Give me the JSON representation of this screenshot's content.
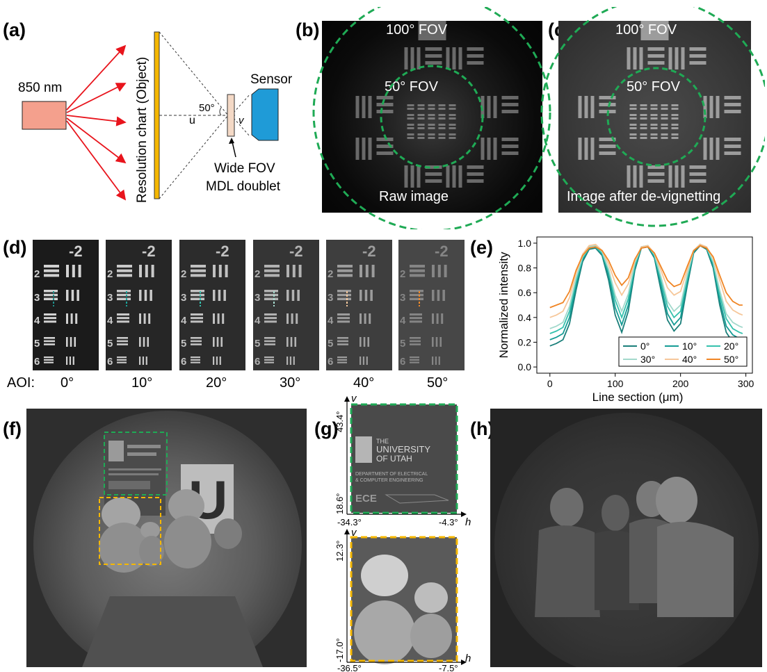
{
  "panel_labels": {
    "a": "(a)",
    "b": "(b)",
    "c": "(c)",
    "d": "(d)",
    "e": "(e)",
    "f": "(f)",
    "g": "(g)",
    "h": "(h)"
  },
  "panel_a": {
    "source_label": "850 nm",
    "object_label": "Resolution chart (Object)",
    "sensor_label": "Sensor",
    "angle_label": "50°",
    "u_label": "u",
    "v_label": "v",
    "lens_label_line1": "Wide FOV",
    "lens_label_line2": "MDL doublet",
    "colors": {
      "source": "#f4a08d",
      "object": "#f5b700",
      "sensor": "#1f9bd7",
      "rays": "#e8141c",
      "lens": "#f4d9c6"
    }
  },
  "panel_b": {
    "fov_outer": "100° FOV",
    "fov_inner": "50° FOV",
    "caption": "Raw image"
  },
  "panel_c": {
    "fov_outer": "100° FOV",
    "fov_inner": "50° FOV",
    "caption": "Image after de-vignetting"
  },
  "fov_circle_color": "#1faa55",
  "panel_d": {
    "aoi_prefix": "AOI:",
    "aoi_values": [
      "0°",
      "10°",
      "20°",
      "30°",
      "40°",
      "50°"
    ],
    "chart_group_label": "-2",
    "element_numbers": [
      "2",
      "3",
      "4",
      "5",
      "6"
    ],
    "line_colors": [
      "#1f8f8a",
      "#1aa39a",
      "#35c2b0",
      "#a8dccf",
      "#f6c89c",
      "#f08a2a"
    ]
  },
  "chart_data": {
    "type": "line",
    "xlabel": "Line section (μm)",
    "ylabel": "Normalized intensity",
    "xlim": [
      -20,
      310
    ],
    "ylim": [
      -0.05,
      1.05
    ],
    "xticks": [
      0,
      100,
      200,
      300
    ],
    "yticks": [
      0.0,
      0.2,
      0.4,
      0.6,
      0.8,
      1.0
    ],
    "legend_position": "bottom-right",
    "legend_columns": 3,
    "x": [
      0,
      10,
      20,
      30,
      40,
      50,
      60,
      70,
      80,
      90,
      100,
      110,
      120,
      130,
      140,
      150,
      160,
      170,
      180,
      190,
      200,
      210,
      220,
      230,
      240,
      250,
      260,
      270,
      280,
      290,
      295
    ],
    "series": [
      {
        "name": "0°",
        "color": "#1a7f7a",
        "values": [
          0.17,
          0.19,
          0.22,
          0.35,
          0.62,
          0.85,
          0.95,
          0.96,
          0.9,
          0.7,
          0.42,
          0.28,
          0.45,
          0.78,
          0.96,
          0.97,
          0.88,
          0.62,
          0.38,
          0.29,
          0.35,
          0.65,
          0.92,
          0.98,
          0.95,
          0.8,
          0.5,
          0.28,
          0.2,
          0.17,
          0.16
        ]
      },
      {
        "name": "10°",
        "color": "#159c95",
        "values": [
          0.22,
          0.24,
          0.27,
          0.4,
          0.66,
          0.87,
          0.96,
          0.97,
          0.91,
          0.74,
          0.48,
          0.34,
          0.5,
          0.8,
          0.97,
          0.98,
          0.89,
          0.66,
          0.43,
          0.34,
          0.4,
          0.68,
          0.93,
          0.99,
          0.96,
          0.82,
          0.54,
          0.33,
          0.26,
          0.23,
          0.22
        ]
      },
      {
        "name": "20°",
        "color": "#35c1ad",
        "values": [
          0.27,
          0.29,
          0.32,
          0.45,
          0.69,
          0.88,
          0.96,
          0.97,
          0.92,
          0.77,
          0.54,
          0.4,
          0.55,
          0.82,
          0.97,
          0.98,
          0.9,
          0.7,
          0.49,
          0.4,
          0.45,
          0.71,
          0.94,
          0.99,
          0.96,
          0.84,
          0.58,
          0.39,
          0.31,
          0.28,
          0.27
        ]
      },
      {
        "name": "30°",
        "color": "#a3d9cc",
        "values": [
          0.31,
          0.33,
          0.36,
          0.49,
          0.72,
          0.89,
          0.97,
          0.98,
          0.93,
          0.79,
          0.58,
          0.45,
          0.59,
          0.84,
          0.97,
          0.98,
          0.91,
          0.73,
          0.53,
          0.45,
          0.5,
          0.74,
          0.94,
          0.99,
          0.97,
          0.85,
          0.62,
          0.43,
          0.36,
          0.33,
          0.32
        ]
      },
      {
        "name": "40°",
        "color": "#f6c79a",
        "values": [
          0.4,
          0.42,
          0.45,
          0.56,
          0.76,
          0.91,
          0.98,
          0.99,
          0.94,
          0.83,
          0.68,
          0.58,
          0.67,
          0.86,
          0.97,
          0.98,
          0.92,
          0.78,
          0.64,
          0.58,
          0.61,
          0.78,
          0.94,
          0.99,
          0.97,
          0.88,
          0.7,
          0.53,
          0.46,
          0.43,
          0.42
        ]
      },
      {
        "name": "50°",
        "color": "#f08524",
        "values": [
          0.48,
          0.5,
          0.52,
          0.61,
          0.78,
          0.9,
          0.96,
          0.97,
          0.94,
          0.86,
          0.74,
          0.66,
          0.72,
          0.87,
          0.96,
          0.97,
          0.92,
          0.81,
          0.7,
          0.65,
          0.67,
          0.81,
          0.94,
          0.98,
          0.96,
          0.89,
          0.74,
          0.6,
          0.53,
          0.5,
          0.5
        ]
      }
    ]
  },
  "panel_g": {
    "top": {
      "v_label": "v",
      "h_label": "h",
      "v_top": "43.4°",
      "v_bottom": "18.6°",
      "h_left": "-34.3°",
      "h_right": "-4.3°",
      "box_color": "#1faa55"
    },
    "bottom": {
      "v_label": "v",
      "h_label": "h",
      "v_top": "12.3°",
      "v_bottom": "-17.0°",
      "h_left": "-36.5°",
      "h_right": "-7.5°",
      "box_color": "#f5b700"
    },
    "sign_text": {
      "line1": "THE",
      "line2": "UNIVERSITY",
      "line3": "OF UTAH",
      "line4": "DEPARTMENT OF ELECTRICAL",
      "line5": "& COMPUTER ENGINEERING",
      "logo": "ECE"
    }
  },
  "panel_f": {
    "letter": "U",
    "box_colors": [
      "#1faa55",
      "#f5b700"
    ]
  }
}
